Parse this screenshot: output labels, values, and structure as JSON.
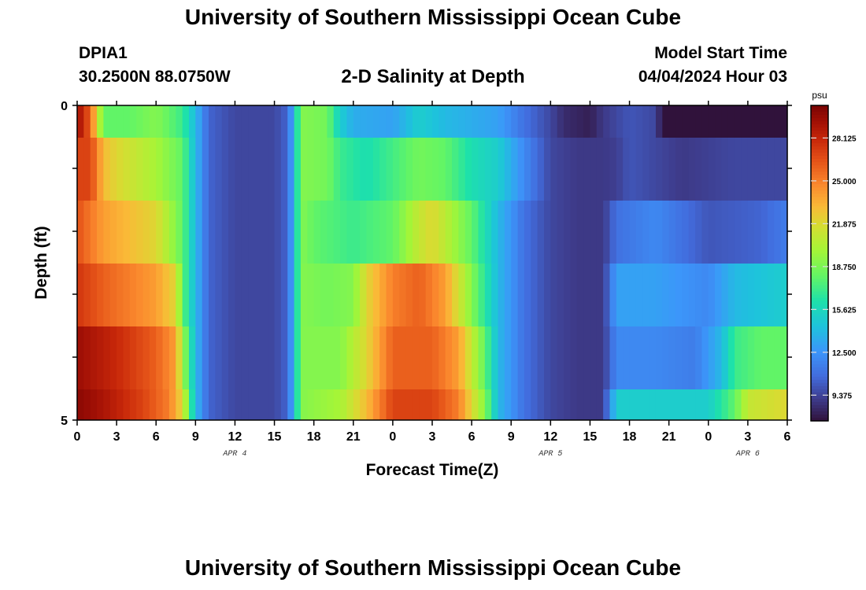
{
  "header": {
    "title": "University of Southern Mississippi Ocean Cube",
    "station": "DPIA1",
    "coords": "30.2500N  88.0750W",
    "subtitle": "2-D Salinity at Depth",
    "model_start_label": "Model Start Time",
    "model_start_value": "04/04/2024 Hour 03"
  },
  "footer": {
    "title": "University of Southern Mississippi Ocean Cube"
  },
  "chart_data": {
    "type": "heatmap",
    "title": "2-D Salinity at Depth",
    "xlabel": "Forecast Time(Z)",
    "ylabel": "Depth (ft)",
    "x_hours": [
      0,
      54
    ],
    "ylim": [
      0,
      5
    ],
    "y_tick_labels": [
      "0",
      "5"
    ],
    "x_tick_labels": [
      "0",
      "3",
      "6",
      "9",
      "12",
      "15",
      "18",
      "21",
      "0",
      "3",
      "6",
      "9",
      "12",
      "15",
      "18",
      "21",
      "0",
      "3",
      "6"
    ],
    "date_labels": [
      {
        "label": "APR 4",
        "hour": 12
      },
      {
        "label": "APR 5",
        "hour": 36
      },
      {
        "label": "APR 6",
        "hour": 51
      }
    ],
    "colorbar": {
      "unit": "psu",
      "min": 7.5,
      "max": 30.5,
      "tick_labels": [
        "28.125",
        "25.000",
        "21.875",
        "18.750",
        "15.625",
        "12.500",
        "9.375"
      ]
    },
    "depth_rows": [
      {
        "depth": "0-1",
        "profile": [
          [
            0,
            29.5
          ],
          [
            1,
            26
          ],
          [
            2,
            18
          ],
          [
            4,
            18
          ],
          [
            6,
            19
          ],
          [
            8,
            17
          ],
          [
            9,
            14
          ],
          [
            10,
            10.5
          ],
          [
            12,
            9.5
          ],
          [
            15,
            9.5
          ],
          [
            16,
            10.5
          ],
          [
            16.5,
            14
          ],
          [
            17,
            19
          ],
          [
            19,
            18.5
          ],
          [
            20,
            15
          ],
          [
            21,
            13.5
          ],
          [
            24,
            13
          ],
          [
            26,
            15
          ],
          [
            28,
            14
          ],
          [
            32,
            13
          ],
          [
            34,
            11
          ],
          [
            36,
            9.5
          ],
          [
            37,
            8.5
          ],
          [
            39,
            8
          ],
          [
            40,
            9
          ],
          [
            42,
            10
          ],
          [
            44,
            9.5
          ],
          [
            44.5,
            7.5
          ],
          [
            45,
            6.5
          ],
          [
            54,
            6.5
          ]
        ]
      },
      {
        "depth": "1-2",
        "profile": [
          [
            0,
            27
          ],
          [
            1,
            27
          ],
          [
            2,
            23
          ],
          [
            3,
            22
          ],
          [
            6,
            20
          ],
          [
            8,
            18
          ],
          [
            9,
            14
          ],
          [
            10,
            10.5
          ],
          [
            12,
            9.5
          ],
          [
            15,
            9.5
          ],
          [
            16,
            10.5
          ],
          [
            16.5,
            14
          ],
          [
            17,
            19
          ],
          [
            19,
            18.5
          ],
          [
            20,
            17
          ],
          [
            22,
            16
          ],
          [
            26,
            18.5
          ],
          [
            28,
            18
          ],
          [
            30,
            16
          ],
          [
            32,
            15
          ],
          [
            34,
            12
          ],
          [
            36,
            9.5
          ],
          [
            38,
            9
          ],
          [
            40,
            9
          ],
          [
            41,
            9.2
          ],
          [
            42,
            10
          ],
          [
            44,
            9.5
          ],
          [
            46,
            9
          ],
          [
            50,
            9.5
          ],
          [
            54,
            9.5
          ]
        ]
      },
      {
        "depth": "2-3",
        "profile": [
          [
            0,
            26.5
          ],
          [
            2,
            24
          ],
          [
            6,
            22
          ],
          [
            8,
            18
          ],
          [
            9,
            14
          ],
          [
            10,
            10.5
          ],
          [
            12,
            9.5
          ],
          [
            15,
            9.5
          ],
          [
            16,
            10.5
          ],
          [
            16.5,
            14
          ],
          [
            17,
            19
          ],
          [
            18,
            18
          ],
          [
            21,
            17
          ],
          [
            24,
            18
          ],
          [
            26,
            21
          ],
          [
            27,
            22
          ],
          [
            30,
            18
          ],
          [
            32,
            14
          ],
          [
            34,
            11
          ],
          [
            36,
            9.5
          ],
          [
            38,
            9
          ],
          [
            40,
            9
          ],
          [
            41,
            11
          ],
          [
            44,
            12
          ],
          [
            46,
            11
          ],
          [
            48,
            10
          ],
          [
            52,
            10.5
          ],
          [
            54,
            11.5
          ]
        ]
      },
      {
        "depth": "3-4",
        "profile": [
          [
            0,
            27.5
          ],
          [
            2,
            26
          ],
          [
            6,
            24
          ],
          [
            7.5,
            22
          ],
          [
            8,
            18
          ],
          [
            9,
            14
          ],
          [
            10,
            10.5
          ],
          [
            12,
            9.5
          ],
          [
            15,
            9.5
          ],
          [
            16,
            10.5
          ],
          [
            16.5,
            14
          ],
          [
            17,
            19
          ],
          [
            19,
            18.5
          ],
          [
            21,
            19
          ],
          [
            22,
            22
          ],
          [
            24,
            25
          ],
          [
            26,
            26
          ],
          [
            28,
            24
          ],
          [
            30,
            19
          ],
          [
            32,
            14
          ],
          [
            34,
            11
          ],
          [
            36,
            9.5
          ],
          [
            38,
            9
          ],
          [
            40,
            9
          ],
          [
            41,
            13
          ],
          [
            44,
            13
          ],
          [
            48,
            12
          ],
          [
            50,
            14
          ],
          [
            54,
            15
          ]
        ]
      },
      {
        "depth": "4-5",
        "profile": [
          [
            0,
            29.5
          ],
          [
            3,
            28
          ],
          [
            6,
            26
          ],
          [
            7.5,
            24
          ],
          [
            8,
            20
          ],
          [
            9,
            14
          ],
          [
            10,
            10.5
          ],
          [
            12,
            9.5
          ],
          [
            15,
            9.5
          ],
          [
            16,
            10.5
          ],
          [
            16.5,
            14
          ],
          [
            17,
            19
          ],
          [
            20,
            19
          ],
          [
            22,
            22
          ],
          [
            24,
            26
          ],
          [
            27,
            26
          ],
          [
            29,
            24
          ],
          [
            31,
            18
          ],
          [
            32,
            14
          ],
          [
            34,
            11
          ],
          [
            36,
            9.5
          ],
          [
            38,
            9
          ],
          [
            40,
            9
          ],
          [
            41,
            12
          ],
          [
            44,
            12
          ],
          [
            47,
            11.5
          ],
          [
            49,
            14
          ],
          [
            50,
            17
          ],
          [
            52,
            18
          ],
          [
            54,
            18
          ]
        ]
      },
      {
        "depth": "5",
        "profile": [
          [
            0,
            30
          ],
          [
            2,
            29
          ],
          [
            5,
            27
          ],
          [
            7,
            25
          ],
          [
            8,
            22
          ],
          [
            9,
            14
          ],
          [
            10,
            10.5
          ],
          [
            12,
            9.5
          ],
          [
            15,
            9.5
          ],
          [
            16,
            10.5
          ],
          [
            16.5,
            14
          ],
          [
            17,
            19
          ],
          [
            20,
            20
          ],
          [
            22,
            23
          ],
          [
            24,
            27
          ],
          [
            27,
            27
          ],
          [
            29,
            25
          ],
          [
            31,
            19
          ],
          [
            32,
            14
          ],
          [
            34,
            11
          ],
          [
            36,
            9.5
          ],
          [
            38,
            9
          ],
          [
            40,
            9
          ],
          [
            41,
            15
          ],
          [
            44,
            15
          ],
          [
            48,
            15
          ],
          [
            50,
            18
          ],
          [
            51,
            21
          ],
          [
            54,
            22
          ]
        ]
      }
    ]
  }
}
